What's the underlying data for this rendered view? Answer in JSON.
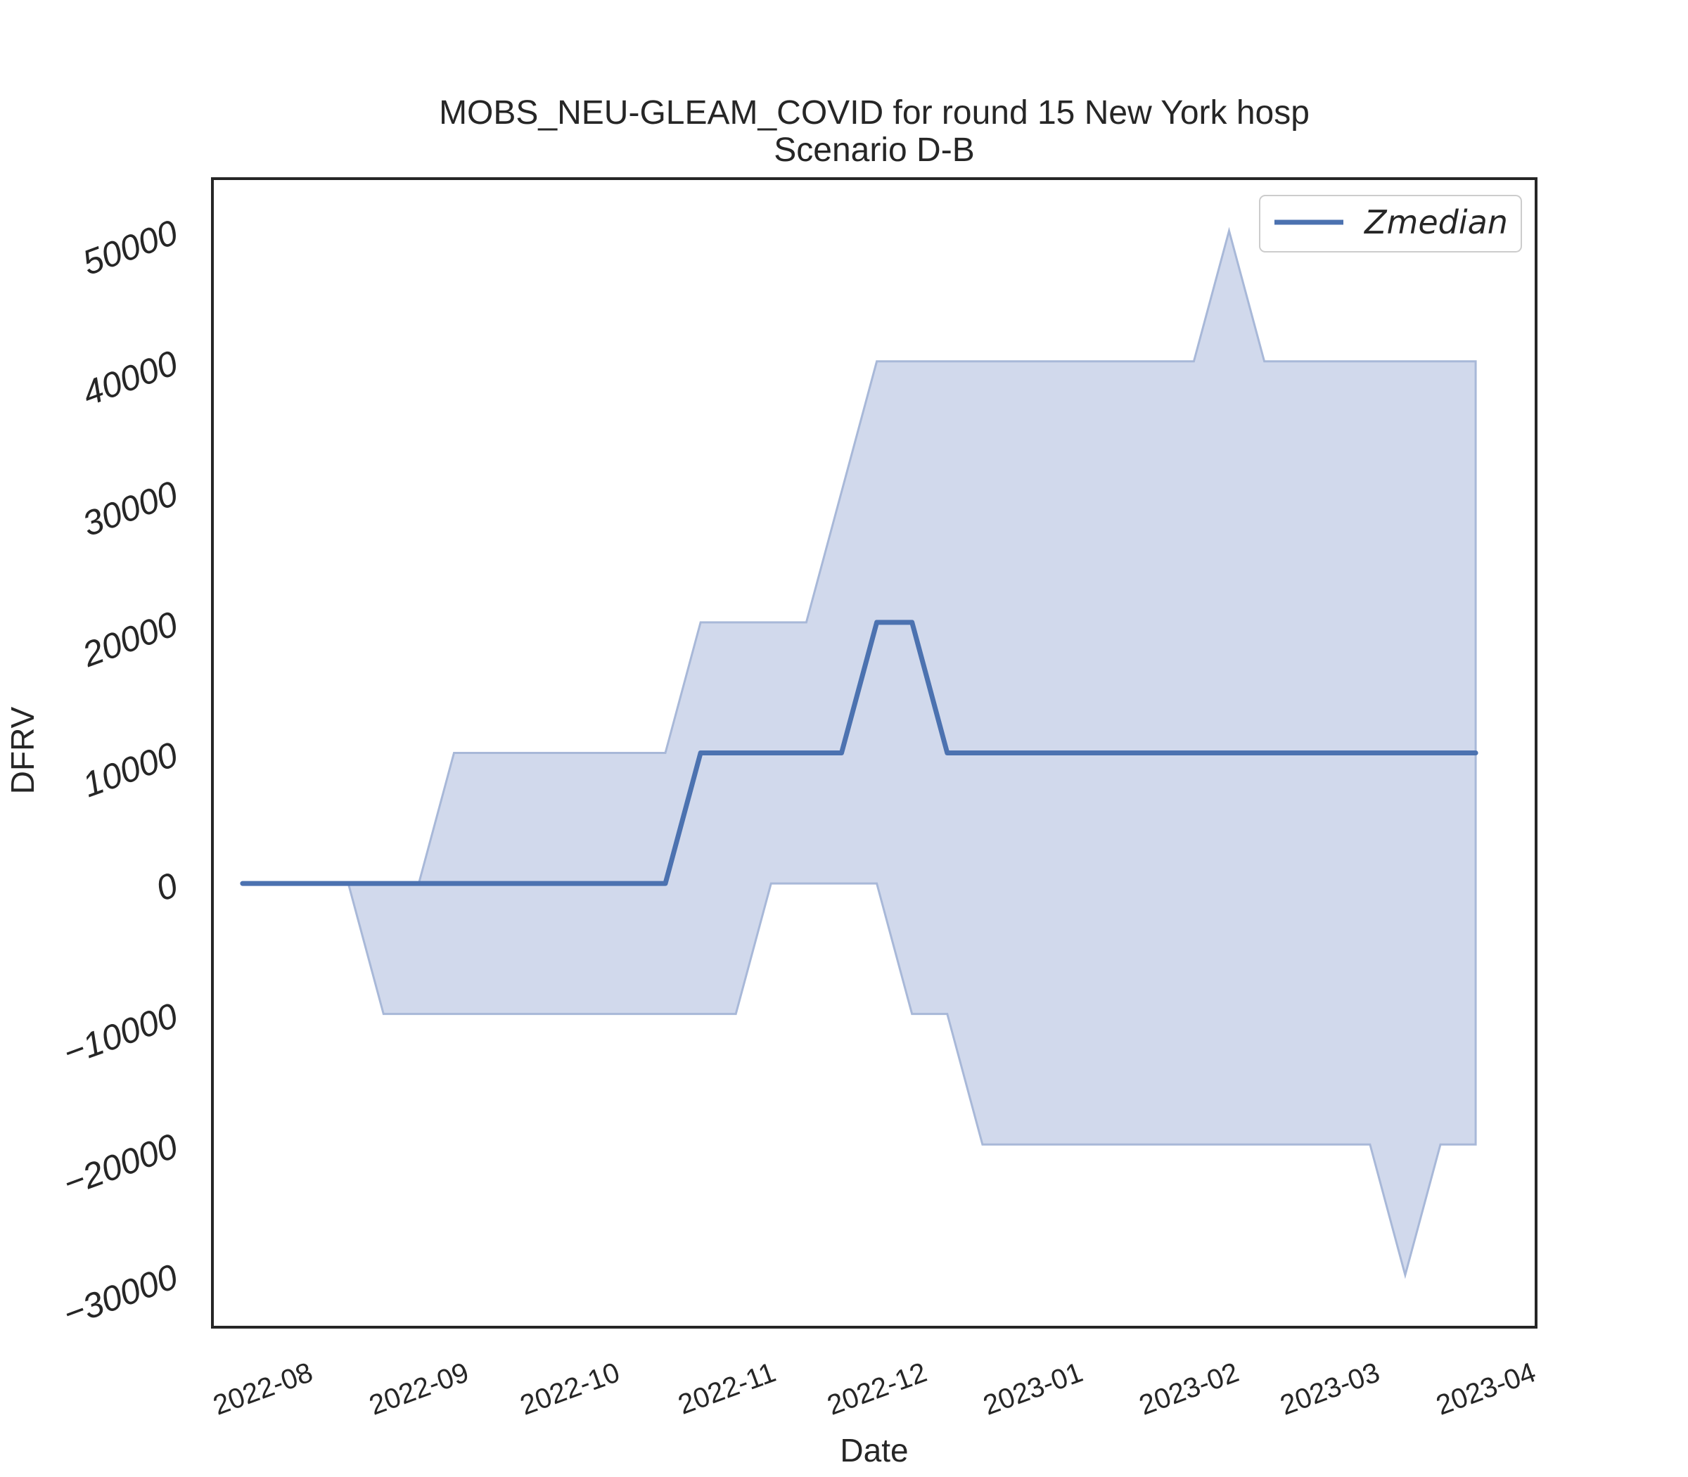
{
  "chart_data": {
    "type": "line",
    "title": "MOBS_NEU-GLEAM_COVID for round 15 New York hosp",
    "subtitle": "Scenario D-B",
    "xlabel": "Date",
    "ylabel": "DFRV",
    "x_ticks": [
      "2022-08",
      "2022-09",
      "2022-10",
      "2022-11",
      "2022-12",
      "2023-01",
      "2023-02",
      "2023-03",
      "2023-04"
    ],
    "y_ticks": [
      -30000,
      -20000,
      -10000,
      0,
      10000,
      20000,
      30000,
      40000,
      50000
    ],
    "y_tick_labels": [
      "−30000",
      "−20000",
      "−10000",
      "0",
      "10000",
      "20000",
      "30000",
      "40000",
      "50000"
    ],
    "xlim": [
      "2022-07-17",
      "2023-04-06"
    ],
    "ylim": [
      -34000,
      54000
    ],
    "grid": false,
    "legend_position": "top-right",
    "colors": {
      "line": "#4c72b0",
      "band": "#c5d0e7",
      "band_edge": "#a8b8d8",
      "frame": "#262626"
    },
    "series": [
      {
        "name": "Zmedian",
        "x": [
          "2022-07-23",
          "2022-07-30",
          "2022-08-06",
          "2022-08-13",
          "2022-08-20",
          "2022-08-27",
          "2022-09-03",
          "2022-09-10",
          "2022-09-17",
          "2022-09-24",
          "2022-10-01",
          "2022-10-08",
          "2022-10-15",
          "2022-10-22",
          "2022-10-29",
          "2022-11-05",
          "2022-11-12",
          "2022-11-19",
          "2022-11-26",
          "2022-12-03",
          "2022-12-10",
          "2022-12-17",
          "2022-12-24",
          "2022-12-31",
          "2023-01-07",
          "2023-01-14",
          "2023-01-21",
          "2023-01-28",
          "2023-02-04",
          "2023-02-11",
          "2023-02-18",
          "2023-02-25",
          "2023-03-04",
          "2023-03-11",
          "2023-03-18",
          "2023-03-25"
        ],
        "median": [
          0,
          0,
          0,
          0,
          0,
          0,
          0,
          0,
          0,
          0,
          0,
          0,
          0,
          10000,
          10000,
          10000,
          10000,
          10000,
          20000,
          20000,
          10000,
          10000,
          10000,
          10000,
          10000,
          10000,
          10000,
          10000,
          10000,
          10000,
          10000,
          10000,
          10000,
          10000,
          10000,
          10000
        ],
        "lower": [
          0,
          0,
          0,
          0,
          -10000,
          -10000,
          -10000,
          -10000,
          -10000,
          -10000,
          -10000,
          -10000,
          -10000,
          -10000,
          -10000,
          0,
          0,
          0,
          0,
          -10000,
          -10000,
          -20000,
          -20000,
          -20000,
          -20000,
          -20000,
          -20000,
          -20000,
          -20000,
          -20000,
          -20000,
          -20000,
          -20000,
          -30000,
          -20000,
          -20000
        ],
        "upper": [
          0,
          0,
          0,
          0,
          0,
          0,
          10000,
          10000,
          10000,
          10000,
          10000,
          10000,
          10000,
          20000,
          20000,
          20000,
          20000,
          30000,
          40000,
          40000,
          40000,
          40000,
          40000,
          40000,
          40000,
          40000,
          40000,
          40000,
          50000,
          40000,
          40000,
          40000,
          40000,
          40000,
          40000,
          40000
        ]
      }
    ]
  }
}
